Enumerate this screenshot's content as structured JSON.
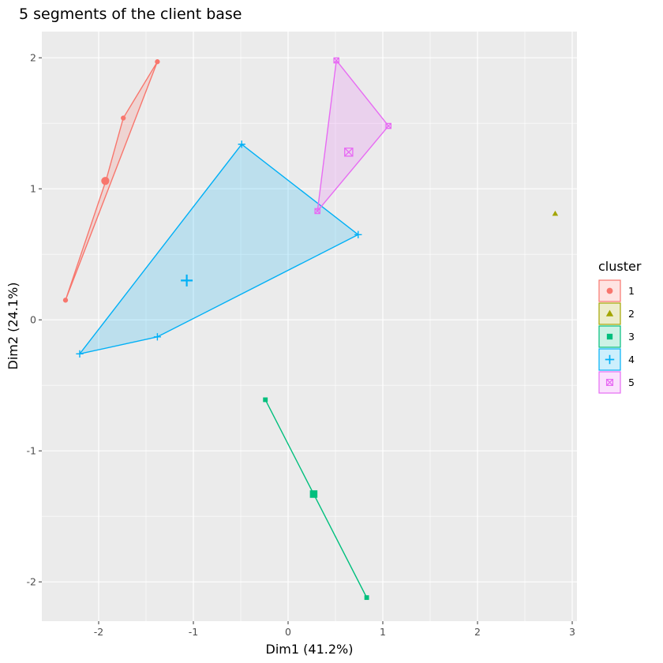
{
  "chart_data": {
    "type": "scatter",
    "title": "5 segments of the client base",
    "xlabel": "Dim1 (41.2%)",
    "ylabel": "Dim2 (24.1%)",
    "xlim": [
      -2.6,
      3.05
    ],
    "ylim": [
      -2.3,
      2.2
    ],
    "x_ticks": [
      -2,
      -1,
      0,
      1,
      2,
      3
    ],
    "x_tick_labels": [
      "-2",
      "-1",
      "0",
      "1",
      "2",
      "3"
    ],
    "y_ticks": [
      -2,
      -1,
      0,
      1,
      2
    ],
    "y_tick_labels": [
      "-2",
      "-1",
      "0",
      "1",
      "2"
    ],
    "grid": true,
    "legend_title": "cluster",
    "legend_position": "right",
    "series": [
      {
        "name": "1",
        "color": "#F8766D",
        "shape": "circle",
        "points": [
          [
            -1.38,
            1.97
          ],
          [
            -1.74,
            1.54
          ],
          [
            -1.92,
            1.07
          ],
          [
            -2.35,
            0.15
          ]
        ],
        "hull": [
          [
            -1.38,
            1.97
          ],
          [
            -2.35,
            0.15
          ],
          [
            -1.92,
            1.07
          ],
          [
            -1.74,
            1.54
          ]
        ],
        "center": [
          -1.93,
          1.06
        ]
      },
      {
        "name": "2",
        "color": "#A3A500",
        "shape": "triangle",
        "points": [
          [
            2.82,
            0.81
          ]
        ],
        "hull": [],
        "center": [
          2.82,
          0.81
        ]
      },
      {
        "name": "3",
        "color": "#00BF7D",
        "shape": "square",
        "points": [
          [
            -0.24,
            -0.61
          ],
          [
            0.83,
            -2.12
          ]
        ],
        "hull": [
          [
            -0.24,
            -0.61
          ],
          [
            0.83,
            -2.12
          ]
        ],
        "center": [
          0.27,
          -1.33
        ]
      },
      {
        "name": "4",
        "color": "#00B0F6",
        "shape": "plus",
        "points": [
          [
            -0.49,
            1.34
          ],
          [
            0.74,
            0.65
          ],
          [
            -1.38,
            -0.13
          ],
          [
            -2.2,
            -0.26
          ]
        ],
        "hull": [
          [
            -0.49,
            1.34
          ],
          [
            0.74,
            0.65
          ],
          [
            -1.38,
            -0.13
          ],
          [
            -2.2,
            -0.26
          ]
        ],
        "center": [
          -1.07,
          0.3
        ]
      },
      {
        "name": "5",
        "color": "#E76BF3",
        "shape": "square-x",
        "points": [
          [
            0.51,
            1.98
          ],
          [
            1.06,
            1.48
          ],
          [
            0.31,
            0.83
          ]
        ],
        "hull": [
          [
            0.51,
            1.98
          ],
          [
            1.06,
            1.48
          ],
          [
            0.31,
            0.83
          ]
        ],
        "center": [
          0.64,
          1.28
        ]
      }
    ]
  }
}
